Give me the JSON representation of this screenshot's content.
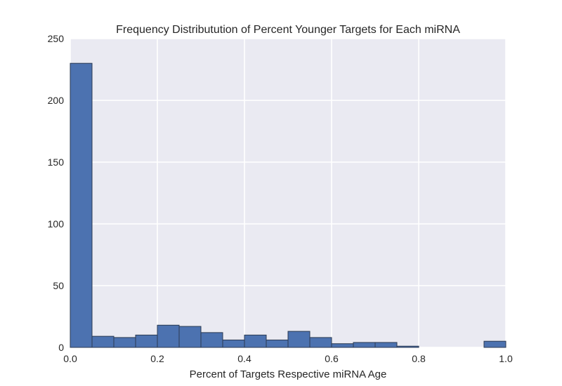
{
  "chart_data": {
    "type": "bar",
    "title": "Frequency Distributution of Percent Younger Targets for Each miRNA",
    "xlabel": "Percent of Targets Respective miRNA Age",
    "ylabel": "",
    "xlim": [
      0.0,
      1.0
    ],
    "ylim": [
      0,
      250
    ],
    "x_ticks": [
      "0.0",
      "0.2",
      "0.4",
      "0.6",
      "0.8",
      "1.0"
    ],
    "y_ticks": [
      "0",
      "50",
      "100",
      "150",
      "200",
      "250"
    ],
    "grid": true,
    "legend": "none",
    "bins": [
      {
        "start": 0.0,
        "end": 0.05,
        "count": 230
      },
      {
        "start": 0.05,
        "end": 0.1,
        "count": 9
      },
      {
        "start": 0.1,
        "end": 0.15,
        "count": 8
      },
      {
        "start": 0.15,
        "end": 0.2,
        "count": 10
      },
      {
        "start": 0.2,
        "end": 0.25,
        "count": 18
      },
      {
        "start": 0.25,
        "end": 0.3,
        "count": 17
      },
      {
        "start": 0.3,
        "end": 0.35,
        "count": 12
      },
      {
        "start": 0.35,
        "end": 0.4,
        "count": 6
      },
      {
        "start": 0.4,
        "end": 0.45,
        "count": 10
      },
      {
        "start": 0.45,
        "end": 0.5,
        "count": 6
      },
      {
        "start": 0.5,
        "end": 0.55,
        "count": 13
      },
      {
        "start": 0.55,
        "end": 0.6,
        "count": 8
      },
      {
        "start": 0.6,
        "end": 0.65,
        "count": 3
      },
      {
        "start": 0.65,
        "end": 0.7,
        "count": 4
      },
      {
        "start": 0.7,
        "end": 0.75,
        "count": 4
      },
      {
        "start": 0.75,
        "end": 0.8,
        "count": 1
      },
      {
        "start": 0.8,
        "end": 0.85,
        "count": 0
      },
      {
        "start": 0.85,
        "end": 0.9,
        "count": 0
      },
      {
        "start": 0.9,
        "end": 0.95,
        "count": 0
      },
      {
        "start": 0.95,
        "end": 1.0,
        "count": 5
      }
    ],
    "colors": {
      "bar": "#4c72b0",
      "bar_edge": "#2b3a52",
      "plot_background": "#eaeaf2",
      "grid": "#ffffff"
    }
  }
}
